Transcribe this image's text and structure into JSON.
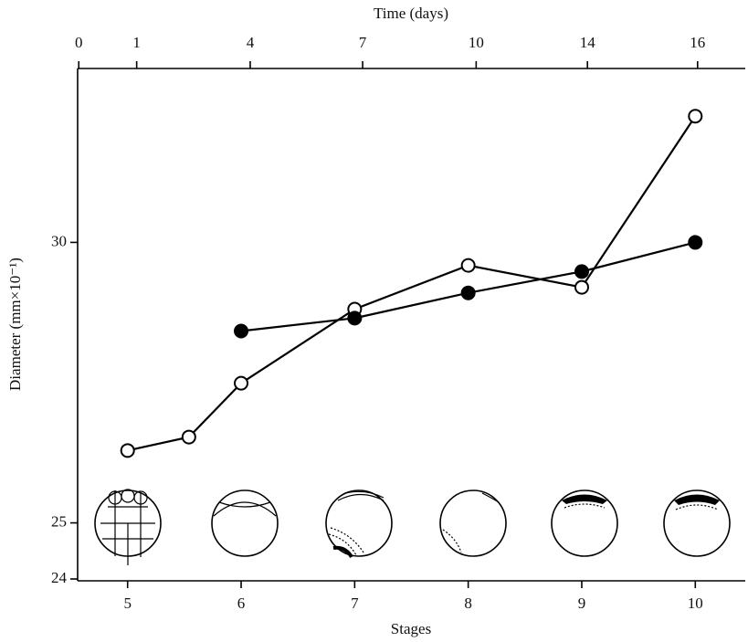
{
  "chart_data": {
    "type": "line",
    "x_label": "Stages",
    "x2_label": "Time (days)",
    "y_label": "Diameter (mm×10⁻¹)",
    "xlim": [
      4.56,
      10.44
    ],
    "xticks": [
      5,
      6,
      7,
      8,
      9,
      10
    ],
    "x2ticks": [
      {
        "value": 4.57,
        "label": "0"
      },
      {
        "value": 5.08,
        "label": "1"
      },
      {
        "value": 6.08,
        "label": "4"
      },
      {
        "value": 7.07,
        "label": "7"
      },
      {
        "value": 8.07,
        "label": "10"
      },
      {
        "value": 9.05,
        "label": "14"
      },
      {
        "value": 10.02,
        "label": "16"
      }
    ],
    "ylim": [
      24,
      33.1
    ],
    "yticks": [
      24,
      25,
      30
    ],
    "series": [
      {
        "color": "#000000",
        "marker_fill": "#ffffff",
        "x": [
          5,
          5.54,
          6,
          7,
          8,
          9,
          10
        ],
        "values": [
          26.29,
          26.53,
          27.49,
          28.81,
          29.59,
          29.2,
          32.25
        ]
      },
      {
        "color": "#000000",
        "marker_fill": "#000000",
        "x": [
          6,
          7,
          8,
          9,
          10
        ],
        "values": [
          28.42,
          28.65,
          29.1,
          29.48,
          30.0
        ]
      }
    ]
  }
}
